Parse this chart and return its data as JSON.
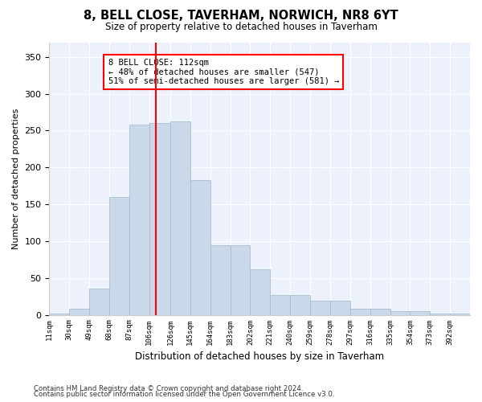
{
  "title": "8, BELL CLOSE, TAVERHAM, NORWICH, NR8 6YT",
  "subtitle": "Size of property relative to detached houses in Taverham",
  "xlabel": "Distribution of detached houses by size in Taverham",
  "ylabel": "Number of detached properties",
  "annotation_title": "8 BELL CLOSE: 112sqm",
  "annotation_line1": "← 48% of detached houses are smaller (547)",
  "annotation_line2": "51% of semi-detached houses are larger (581) →",
  "bar_color": "#cad9ea",
  "bar_edge_color": "#a8becc",
  "vline_x": 112,
  "vline_color": "red",
  "categories": [
    "11sqm",
    "30sqm",
    "49sqm",
    "68sqm",
    "87sqm",
    "106sqm",
    "126sqm",
    "145sqm",
    "164sqm",
    "183sqm",
    "202sqm",
    "221sqm",
    "240sqm",
    "259sqm",
    "278sqm",
    "297sqm",
    "316sqm",
    "335sqm",
    "354sqm",
    "373sqm",
    "392sqm"
  ],
  "bin_edges": [
    11,
    30,
    49,
    68,
    87,
    106,
    126,
    145,
    164,
    183,
    202,
    221,
    240,
    259,
    278,
    297,
    316,
    335,
    354,
    373,
    392,
    411
  ],
  "values": [
    2,
    8,
    35,
    160,
    258,
    260,
    263,
    183,
    95,
    95,
    62,
    27,
    27,
    19,
    19,
    8,
    8,
    5,
    5,
    2,
    2
  ],
  "ylim": [
    0,
    370
  ],
  "yticks": [
    0,
    50,
    100,
    150,
    200,
    250,
    300,
    350
  ],
  "plot_bg_color": "#edf1fb",
  "footer1": "Contains HM Land Registry data © Crown copyright and database right 2024.",
  "footer2": "Contains public sector information licensed under the Open Government Licence v3.0."
}
